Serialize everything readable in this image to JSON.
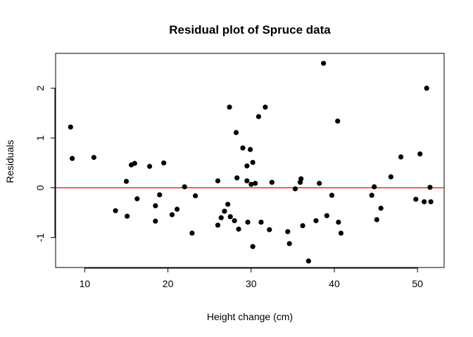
{
  "chart_data": {
    "type": "scatter",
    "title": "Residual plot of Spruce data",
    "xlabel": "Height change (cm)",
    "ylabel": "Residuals",
    "xlim": [
      6.5,
      53.2
    ],
    "ylim": [
      -1.6,
      2.7
    ],
    "xticks": [
      10,
      20,
      30,
      40,
      50
    ],
    "yticks": [
      -1,
      0,
      1,
      2
    ],
    "grid": false,
    "legend": "none",
    "reference_line": {
      "y": 0,
      "color": "#ff0000"
    },
    "point_color": "#000000",
    "points": [
      [
        8.3,
        1.22
      ],
      [
        8.5,
        0.59
      ],
      [
        11.1,
        0.61
      ],
      [
        13.7,
        -0.46
      ],
      [
        15.0,
        0.13
      ],
      [
        15.1,
        -0.57
      ],
      [
        15.6,
        0.46
      ],
      [
        16.0,
        0.49
      ],
      [
        16.3,
        -0.22
      ],
      [
        17.8,
        0.43
      ],
      [
        18.5,
        -0.36
      ],
      [
        18.5,
        -0.67
      ],
      [
        19.0,
        -0.14
      ],
      [
        19.5,
        0.5
      ],
      [
        20.5,
        -0.54
      ],
      [
        21.1,
        -0.43
      ],
      [
        22.0,
        0.02
      ],
      [
        22.9,
        -0.91
      ],
      [
        23.3,
        -0.16
      ],
      [
        26.0,
        0.14
      ],
      [
        26.0,
        -0.75
      ],
      [
        26.4,
        -0.6
      ],
      [
        26.8,
        -0.47
      ],
      [
        27.2,
        -0.33
      ],
      [
        27.4,
        1.62
      ],
      [
        27.5,
        -0.58
      ],
      [
        28.0,
        -0.66
      ],
      [
        28.2,
        1.11
      ],
      [
        28.3,
        0.2
      ],
      [
        28.5,
        -0.83
      ],
      [
        29.0,
        0.8
      ],
      [
        29.5,
        0.14
      ],
      [
        29.5,
        0.44
      ],
      [
        29.6,
        -0.69
      ],
      [
        29.9,
        0.77
      ],
      [
        30.0,
        0.07
      ],
      [
        30.2,
        0.51
      ],
      [
        30.2,
        -1.18
      ],
      [
        30.5,
        0.09
      ],
      [
        30.9,
        1.43
      ],
      [
        31.2,
        -0.69
      ],
      [
        31.7,
        1.62
      ],
      [
        32.2,
        -0.84
      ],
      [
        32.5,
        0.11
      ],
      [
        34.4,
        -0.88
      ],
      [
        34.6,
        -1.12
      ],
      [
        35.3,
        -0.02
      ],
      [
        35.9,
        0.11
      ],
      [
        36.0,
        0.18
      ],
      [
        36.2,
        -0.76
      ],
      [
        36.9,
        -1.47
      ],
      [
        37.8,
        -0.66
      ],
      [
        38.2,
        0.09
      ],
      [
        38.7,
        2.5
      ],
      [
        39.1,
        -0.56
      ],
      [
        39.7,
        -0.15
      ],
      [
        40.4,
        1.34
      ],
      [
        40.5,
        -0.69
      ],
      [
        40.8,
        -0.91
      ],
      [
        44.5,
        -0.15
      ],
      [
        44.8,
        0.02
      ],
      [
        45.1,
        -0.64
      ],
      [
        45.6,
        -0.41
      ],
      [
        46.8,
        0.22
      ],
      [
        48.0,
        0.62
      ],
      [
        49.8,
        -0.23
      ],
      [
        50.3,
        0.68
      ],
      [
        50.8,
        -0.28
      ],
      [
        51.1,
        2.0
      ],
      [
        51.5,
        0.01
      ],
      [
        51.6,
        -0.28
      ]
    ]
  }
}
